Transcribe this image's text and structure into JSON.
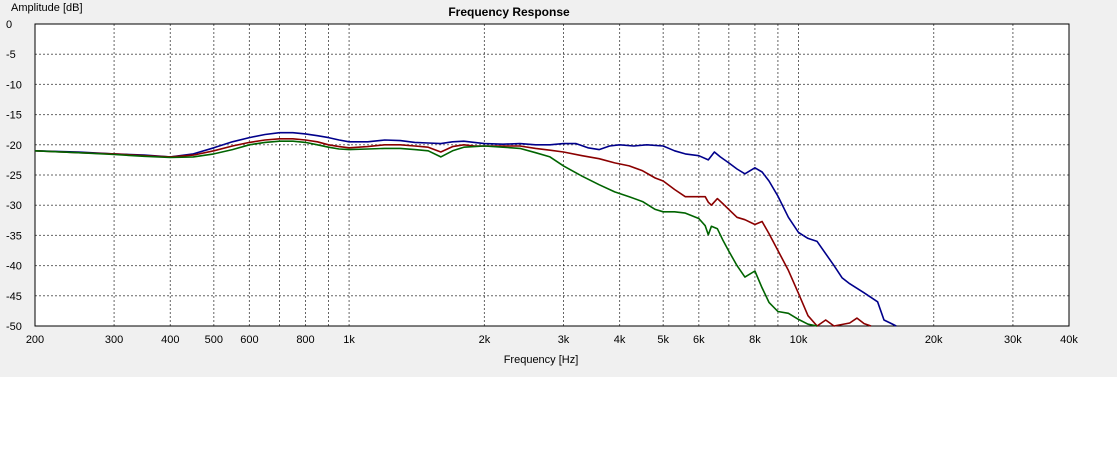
{
  "chart_data": {
    "type": "line",
    "title": "Frequency Response",
    "xlabel": "Frequency [Hz]",
    "ylabel": "Amplitude [dB]",
    "x_scale": "log",
    "xlim": [
      200,
      40000
    ],
    "ylim": [
      -50,
      0
    ],
    "grid": true,
    "x_ticks": [
      {
        "value": 200,
        "label": "200"
      },
      {
        "value": 300,
        "label": "300"
      },
      {
        "value": 400,
        "label": "400"
      },
      {
        "value": 500,
        "label": "500"
      },
      {
        "value": 600,
        "label": "600"
      },
      {
        "value": 800,
        "label": "800"
      },
      {
        "value": 1000,
        "label": "1k"
      },
      {
        "value": 2000,
        "label": "2k"
      },
      {
        "value": 3000,
        "label": "3k"
      },
      {
        "value": 4000,
        "label": "4k"
      },
      {
        "value": 5000,
        "label": "5k"
      },
      {
        "value": 6000,
        "label": "6k"
      },
      {
        "value": 8000,
        "label": "8k"
      },
      {
        "value": 10000,
        "label": "10k"
      },
      {
        "value": 20000,
        "label": "20k"
      },
      {
        "value": 30000,
        "label": "30k"
      },
      {
        "value": 40000,
        "label": "40k"
      }
    ],
    "x_gridlines": [
      200,
      300,
      400,
      500,
      600,
      700,
      800,
      900,
      1000,
      2000,
      3000,
      4000,
      5000,
      6000,
      7000,
      8000,
      9000,
      10000,
      20000,
      30000,
      40000
    ],
    "y_ticks": [
      0,
      -5,
      -10,
      -15,
      -20,
      -25,
      -30,
      -35,
      -40,
      -45,
      -50
    ],
    "y_tick_labels": [
      "0",
      "-5",
      "-10",
      "-15",
      "-20",
      "-25",
      "-30",
      "-35",
      "-40",
      "-45",
      "-50"
    ],
    "series": [
      {
        "color": "#00008b",
        "x": [
          200,
          250,
          300,
          350,
          400,
          450,
          500,
          550,
          600,
          650,
          700,
          750,
          800,
          850,
          900,
          950,
          1000,
          1100,
          1200,
          1300,
          1400,
          1500,
          1600,
          1700,
          1800,
          1900,
          2000,
          2200,
          2400,
          2600,
          2800,
          3000,
          3200,
          3400,
          3600,
          3800,
          4000,
          4300,
          4600,
          5000,
          5300,
          5600,
          6000,
          6300,
          6500,
          6700,
          7000,
          7300,
          7600,
          8000,
          8300,
          8600,
          9000,
          9500,
          10000,
          10500,
          11000,
          12000,
          12500,
          13000,
          14000,
          15000,
          15500,
          16000,
          16500
        ],
        "y": [
          -21,
          -21.2,
          -21.5,
          -21.7,
          -22,
          -21.5,
          -20.5,
          -19.5,
          -18.8,
          -18.3,
          -18,
          -18,
          -18.2,
          -18.5,
          -18.8,
          -19.2,
          -19.5,
          -19.5,
          -19.2,
          -19.3,
          -19.6,
          -19.7,
          -19.8,
          -19.5,
          -19.4,
          -19.6,
          -19.8,
          -19.9,
          -19.8,
          -20,
          -20,
          -19.8,
          -19.8,
          -20.5,
          -20.8,
          -20.2,
          -20,
          -20.2,
          -20,
          -20.2,
          -21,
          -21.5,
          -21.8,
          -22.5,
          -21.2,
          -22,
          -23,
          -24,
          -24.8,
          -23.8,
          -24.5,
          -26,
          -28.5,
          -32,
          -34.5,
          -35.5,
          -36,
          -40,
          -42,
          -43,
          -44.5,
          -46,
          -49,
          -49.5,
          -50
        ]
      },
      {
        "color": "#8b0000",
        "x": [
          200,
          250,
          300,
          350,
          400,
          450,
          500,
          550,
          600,
          650,
          700,
          750,
          800,
          850,
          900,
          950,
          1000,
          1100,
          1200,
          1300,
          1400,
          1500,
          1600,
          1700,
          1800,
          1900,
          2000,
          2200,
          2400,
          2600,
          2800,
          3000,
          3300,
          3600,
          3900,
          4200,
          4500,
          4800,
          5000,
          5300,
          5600,
          6000,
          6200,
          6300,
          6400,
          6600,
          6800,
          7000,
          7300,
          7600,
          8000,
          8300,
          8600,
          9000,
          9500,
          10000,
          10500,
          11000,
          11500,
          12000,
          13000,
          13500,
          14000,
          14500
        ],
        "y": [
          -21,
          -21.3,
          -21.5,
          -21.8,
          -22,
          -21.7,
          -21,
          -20.2,
          -19.6,
          -19.2,
          -19,
          -19,
          -19.2,
          -19.5,
          -20,
          -20.3,
          -20.5,
          -20.3,
          -20,
          -20,
          -20.2,
          -20.4,
          -21.2,
          -20.3,
          -20,
          -20.2,
          -20.2,
          -20.2,
          -20.2,
          -20.6,
          -20.9,
          -21.2,
          -21.8,
          -22.3,
          -23,
          -23.5,
          -24.3,
          -25.5,
          -26,
          -27.4,
          -28.6,
          -28.6,
          -28.6,
          -29.5,
          -30,
          -28.9,
          -29.8,
          -30.7,
          -32,
          -32.4,
          -33.2,
          -32.7,
          -34.7,
          -37.5,
          -40.8,
          -44.6,
          -48.3,
          -50,
          -49,
          -50,
          -49.5,
          -48.7,
          -49.6,
          -50
        ]
      },
      {
        "color": "#006400",
        "x": [
          200,
          250,
          300,
          350,
          400,
          450,
          500,
          550,
          600,
          650,
          700,
          750,
          800,
          850,
          900,
          950,
          1000,
          1100,
          1200,
          1300,
          1400,
          1500,
          1600,
          1700,
          1800,
          1900,
          2000,
          2200,
          2400,
          2600,
          2800,
          3000,
          3300,
          3600,
          3900,
          4200,
          4500,
          4800,
          5000,
          5300,
          5600,
          6000,
          6200,
          6300,
          6400,
          6600,
          6800,
          7000,
          7300,
          7600,
          8000,
          8300,
          8600,
          9000,
          9500,
          10000,
          10500,
          11000
        ],
        "y": [
          -21,
          -21.3,
          -21.6,
          -21.9,
          -22.1,
          -22,
          -21.5,
          -20.8,
          -20,
          -19.6,
          -19.4,
          -19.4,
          -19.6,
          -20,
          -20.4,
          -20.7,
          -20.8,
          -20.7,
          -20.6,
          -20.6,
          -20.8,
          -21,
          -22,
          -21,
          -20.4,
          -20.3,
          -20.2,
          -20.4,
          -20.6,
          -21.3,
          -22,
          -23.5,
          -25.2,
          -26.6,
          -27.8,
          -28.6,
          -29.4,
          -30.7,
          -31.1,
          -31.1,
          -31.3,
          -32.2,
          -33.4,
          -34.9,
          -33.5,
          -33.9,
          -35.9,
          -37.6,
          -40,
          -41.9,
          -40.9,
          -43.7,
          -46.1,
          -47.6,
          -47.9,
          -48.9,
          -49.7,
          -50
        ]
      }
    ]
  }
}
